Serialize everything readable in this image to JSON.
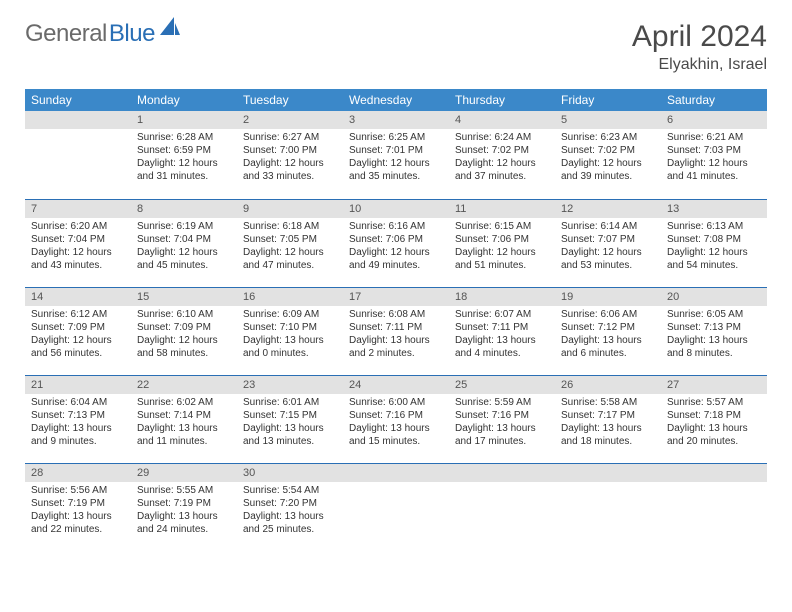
{
  "logo": {
    "text1": "General",
    "text2": "Blue"
  },
  "title": "April 2024",
  "location": "Elyakhin, Israel",
  "colors": {
    "header_bg": "#3b88c9",
    "header_fg": "#ffffff",
    "daynum_bg": "#e2e2e2",
    "row_border": "#2a6fb5",
    "logo_gray": "#6a6a6a",
    "logo_blue": "#2a6fb5",
    "text": "#333333",
    "bg": "#ffffff"
  },
  "weekdays": [
    "Sunday",
    "Monday",
    "Tuesday",
    "Wednesday",
    "Thursday",
    "Friday",
    "Saturday"
  ],
  "weeks": [
    [
      {
        "empty": true
      },
      {
        "day": "1",
        "sunrise": "Sunrise: 6:28 AM",
        "sunset": "Sunset: 6:59 PM",
        "daylight": "Daylight: 12 hours and 31 minutes."
      },
      {
        "day": "2",
        "sunrise": "Sunrise: 6:27 AM",
        "sunset": "Sunset: 7:00 PM",
        "daylight": "Daylight: 12 hours and 33 minutes."
      },
      {
        "day": "3",
        "sunrise": "Sunrise: 6:25 AM",
        "sunset": "Sunset: 7:01 PM",
        "daylight": "Daylight: 12 hours and 35 minutes."
      },
      {
        "day": "4",
        "sunrise": "Sunrise: 6:24 AM",
        "sunset": "Sunset: 7:02 PM",
        "daylight": "Daylight: 12 hours and 37 minutes."
      },
      {
        "day": "5",
        "sunrise": "Sunrise: 6:23 AM",
        "sunset": "Sunset: 7:02 PM",
        "daylight": "Daylight: 12 hours and 39 minutes."
      },
      {
        "day": "6",
        "sunrise": "Sunrise: 6:21 AM",
        "sunset": "Sunset: 7:03 PM",
        "daylight": "Daylight: 12 hours and 41 minutes."
      }
    ],
    [
      {
        "day": "7",
        "sunrise": "Sunrise: 6:20 AM",
        "sunset": "Sunset: 7:04 PM",
        "daylight": "Daylight: 12 hours and 43 minutes."
      },
      {
        "day": "8",
        "sunrise": "Sunrise: 6:19 AM",
        "sunset": "Sunset: 7:04 PM",
        "daylight": "Daylight: 12 hours and 45 minutes."
      },
      {
        "day": "9",
        "sunrise": "Sunrise: 6:18 AM",
        "sunset": "Sunset: 7:05 PM",
        "daylight": "Daylight: 12 hours and 47 minutes."
      },
      {
        "day": "10",
        "sunrise": "Sunrise: 6:16 AM",
        "sunset": "Sunset: 7:06 PM",
        "daylight": "Daylight: 12 hours and 49 minutes."
      },
      {
        "day": "11",
        "sunrise": "Sunrise: 6:15 AM",
        "sunset": "Sunset: 7:06 PM",
        "daylight": "Daylight: 12 hours and 51 minutes."
      },
      {
        "day": "12",
        "sunrise": "Sunrise: 6:14 AM",
        "sunset": "Sunset: 7:07 PM",
        "daylight": "Daylight: 12 hours and 53 minutes."
      },
      {
        "day": "13",
        "sunrise": "Sunrise: 6:13 AM",
        "sunset": "Sunset: 7:08 PM",
        "daylight": "Daylight: 12 hours and 54 minutes."
      }
    ],
    [
      {
        "day": "14",
        "sunrise": "Sunrise: 6:12 AM",
        "sunset": "Sunset: 7:09 PM",
        "daylight": "Daylight: 12 hours and 56 minutes."
      },
      {
        "day": "15",
        "sunrise": "Sunrise: 6:10 AM",
        "sunset": "Sunset: 7:09 PM",
        "daylight": "Daylight: 12 hours and 58 minutes."
      },
      {
        "day": "16",
        "sunrise": "Sunrise: 6:09 AM",
        "sunset": "Sunset: 7:10 PM",
        "daylight": "Daylight: 13 hours and 0 minutes."
      },
      {
        "day": "17",
        "sunrise": "Sunrise: 6:08 AM",
        "sunset": "Sunset: 7:11 PM",
        "daylight": "Daylight: 13 hours and 2 minutes."
      },
      {
        "day": "18",
        "sunrise": "Sunrise: 6:07 AM",
        "sunset": "Sunset: 7:11 PM",
        "daylight": "Daylight: 13 hours and 4 minutes."
      },
      {
        "day": "19",
        "sunrise": "Sunrise: 6:06 AM",
        "sunset": "Sunset: 7:12 PM",
        "daylight": "Daylight: 13 hours and 6 minutes."
      },
      {
        "day": "20",
        "sunrise": "Sunrise: 6:05 AM",
        "sunset": "Sunset: 7:13 PM",
        "daylight": "Daylight: 13 hours and 8 minutes."
      }
    ],
    [
      {
        "day": "21",
        "sunrise": "Sunrise: 6:04 AM",
        "sunset": "Sunset: 7:13 PM",
        "daylight": "Daylight: 13 hours and 9 minutes."
      },
      {
        "day": "22",
        "sunrise": "Sunrise: 6:02 AM",
        "sunset": "Sunset: 7:14 PM",
        "daylight": "Daylight: 13 hours and 11 minutes."
      },
      {
        "day": "23",
        "sunrise": "Sunrise: 6:01 AM",
        "sunset": "Sunset: 7:15 PM",
        "daylight": "Daylight: 13 hours and 13 minutes."
      },
      {
        "day": "24",
        "sunrise": "Sunrise: 6:00 AM",
        "sunset": "Sunset: 7:16 PM",
        "daylight": "Daylight: 13 hours and 15 minutes."
      },
      {
        "day": "25",
        "sunrise": "Sunrise: 5:59 AM",
        "sunset": "Sunset: 7:16 PM",
        "daylight": "Daylight: 13 hours and 17 minutes."
      },
      {
        "day": "26",
        "sunrise": "Sunrise: 5:58 AM",
        "sunset": "Sunset: 7:17 PM",
        "daylight": "Daylight: 13 hours and 18 minutes."
      },
      {
        "day": "27",
        "sunrise": "Sunrise: 5:57 AM",
        "sunset": "Sunset: 7:18 PM",
        "daylight": "Daylight: 13 hours and 20 minutes."
      }
    ],
    [
      {
        "day": "28",
        "sunrise": "Sunrise: 5:56 AM",
        "sunset": "Sunset: 7:19 PM",
        "daylight": "Daylight: 13 hours and 22 minutes."
      },
      {
        "day": "29",
        "sunrise": "Sunrise: 5:55 AM",
        "sunset": "Sunset: 7:19 PM",
        "daylight": "Daylight: 13 hours and 24 minutes."
      },
      {
        "day": "30",
        "sunrise": "Sunrise: 5:54 AM",
        "sunset": "Sunset: 7:20 PM",
        "daylight": "Daylight: 13 hours and 25 minutes."
      },
      {
        "empty": true
      },
      {
        "empty": true
      },
      {
        "empty": true
      },
      {
        "empty": true
      }
    ]
  ]
}
